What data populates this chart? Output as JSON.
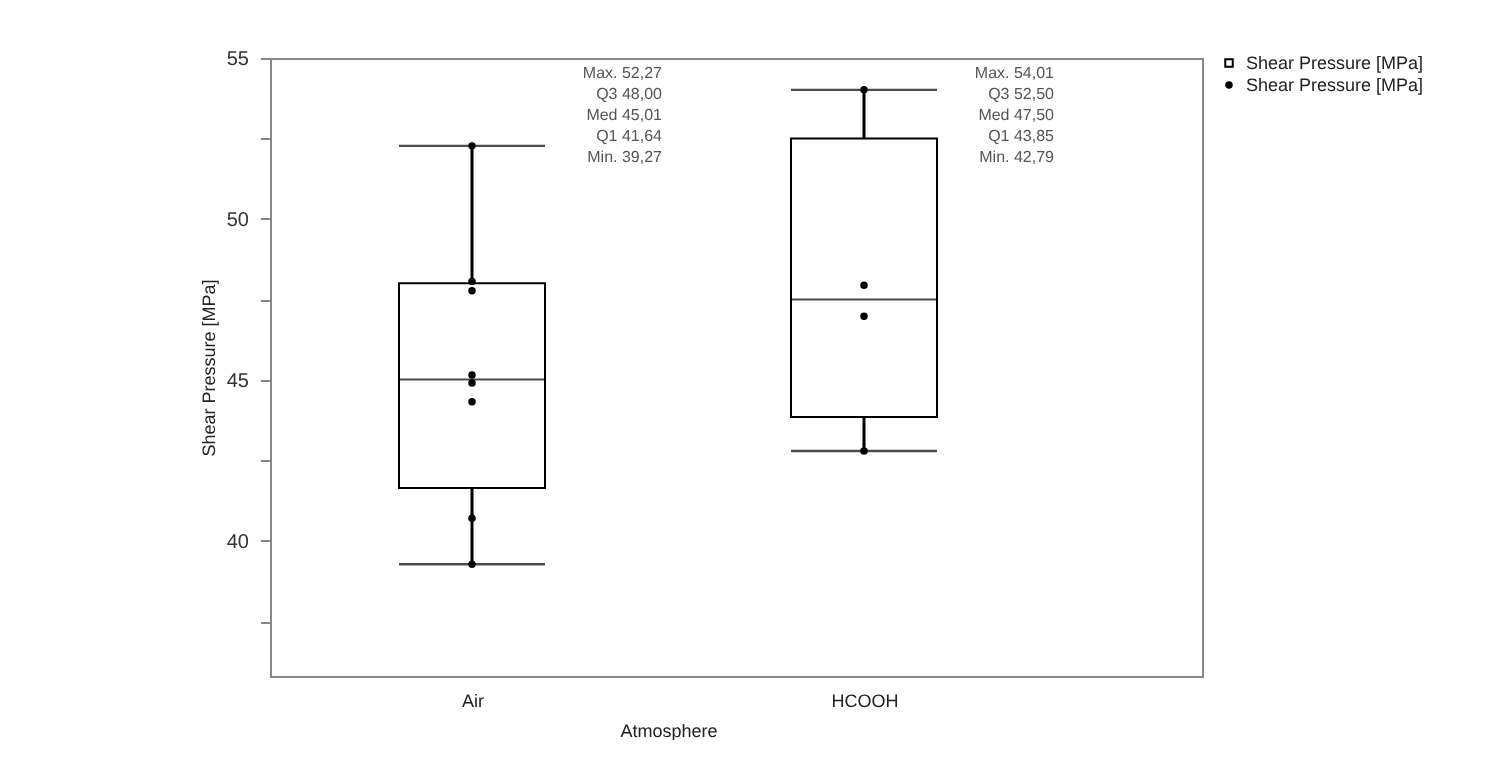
{
  "chart_data": {
    "type": "box",
    "xlabel": "Atmosphere",
    "ylabel": "Shear Pressure [MPa]",
    "categories": [
      "Air",
      "HCOOH"
    ],
    "ylim": [
      35.8,
      55
    ],
    "yticks": [
      {
        "value": 37.5,
        "label": null
      },
      40,
      {
        "value": 42.5,
        "label": null
      },
      45,
      {
        "value": 47.5,
        "label": null
      },
      50,
      {
        "value": 52.5,
        "label": null
      },
      55
    ],
    "series": [
      {
        "name": "Shear Pressure [MPa]",
        "color": "#000000",
        "boxes": [
          {
            "low": 39.27,
            "q1": 41.64,
            "median": 45.01,
            "q3": 48.0,
            "high": 52.27
          },
          {
            "low": 42.79,
            "q1": 43.85,
            "median": 47.5,
            "q3": 52.5,
            "high": 54.01
          }
        ]
      },
      {
        "name": "Shear Pressure [MPa]",
        "type": "scatter",
        "color": "#000000",
        "x": [
          "Air",
          "Air",
          "Air",
          "Air",
          "Air",
          "Air",
          "Air",
          "Air",
          "HCOOH",
          "HCOOH",
          "HCOOH",
          "HCOOH"
        ],
        "values": [
          52.27,
          48.06,
          47.77,
          45.15,
          44.9,
          44.32,
          40.7,
          39.27,
          54.01,
          47.94,
          46.98,
          42.79
        ]
      }
    ],
    "annotations": [
      "Max. 52,27\nQ3  48,00\nMed 45,01\nQ1  41,64\nMin. 39,27",
      "Max. 54,01\nQ3  52,50\nMed 47,50\nQ1  43,85\nMin. 42,79"
    ],
    "marker": "circle",
    "grid": false,
    "legend": "top right"
  }
}
